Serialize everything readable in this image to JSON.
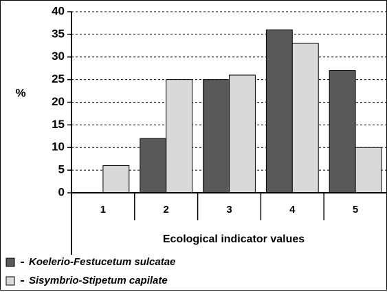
{
  "chart_data": {
    "type": "bar",
    "ylabel": "%",
    "xlabel": "Ecological indicator values",
    "categories": [
      "1",
      "2",
      "3",
      "4",
      "5"
    ],
    "series": [
      {
        "name": "Koelerio-Festucetum sulcatae",
        "color": "#595959",
        "values": [
          0,
          12,
          25,
          36,
          27
        ]
      },
      {
        "name": "Sisymbrio-Stipetum capilate",
        "color": "#d9d9d9",
        "values": [
          6,
          25,
          26,
          33,
          10
        ]
      }
    ],
    "ylim": [
      0,
      40
    ],
    "yticks": [
      0,
      5,
      10,
      15,
      20,
      25,
      30,
      35,
      40
    ],
    "grid": true
  }
}
